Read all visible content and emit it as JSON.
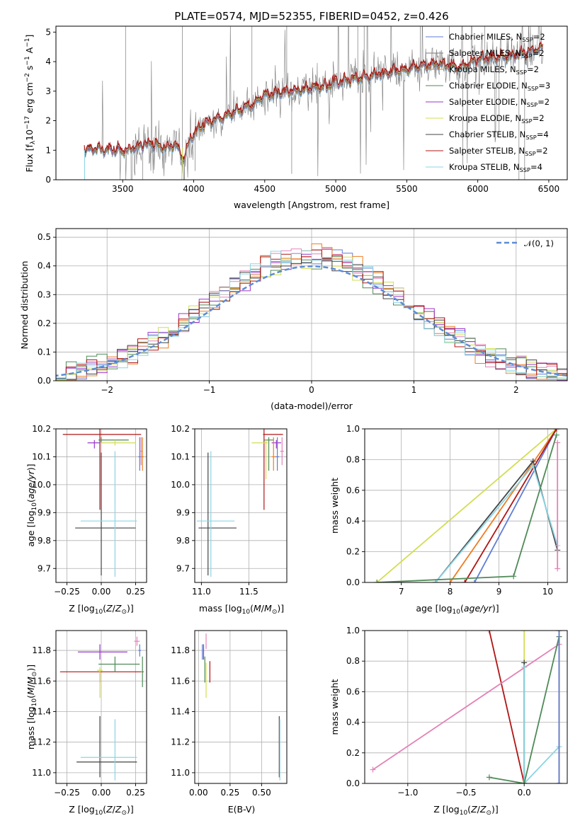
{
  "colors": {
    "chabrier_miles": "#5d7ed6",
    "salpeter_miles": "#7a7a7a",
    "kroupa_miles": "#ee7d22",
    "chabrier_elodie": "#4f8a57",
    "salpeter_elodie": "#9a36c9",
    "kroupa_elodie": "#d3dd52",
    "chabrier_stelib": "#444444",
    "salpeter_stelib": "#b01515",
    "kroupa_stelib": "#8bd5e4",
    "pink": "#e383b8",
    "normal_curve": "#5d8bd6",
    "grid": "#b0b0b0"
  },
  "chart_data": [
    {
      "id": "spectrum",
      "type": "line",
      "title": "PLATE=0574, MJD=52355, FIBERID=0452, z=0.426",
      "xlabel": "wavelength [Angstrom, rest frame]",
      "ylabel": "Flux [f_λ 10^-17 erg cm^-2 s^-1 A^-1]",
      "xlim": [
        3030,
        6630
      ],
      "ylim": [
        0,
        5.2
      ],
      "xticks": [
        3500,
        4000,
        4500,
        5000,
        5500,
        6000,
        6500
      ],
      "yticks": [
        0,
        1,
        2,
        3,
        4,
        5
      ],
      "grid": false,
      "legend_position": "top-right",
      "legend": [
        {
          "label": "Chabrier MILES, N",
          "sub": "SSP",
          "suffix": "=2",
          "color_key": "chabrier_miles"
        },
        {
          "label": "Salpeter MILES, N",
          "sub": "SSP",
          "suffix": "=2",
          "color_key": "salpeter_miles"
        },
        {
          "label": "Kroupa MILES, N",
          "sub": "SSP",
          "suffix": "=2",
          "color_key": "kroupa_miles"
        },
        {
          "label": "Chabrier ELODIE, N",
          "sub": "SSP",
          "suffix": "=3",
          "color_key": "chabrier_elodie"
        },
        {
          "label": "Salpeter ELODIE, N",
          "sub": "SSP",
          "suffix": "=2",
          "color_key": "salpeter_elodie"
        },
        {
          "label": "Kroupa ELODIE, N",
          "sub": "SSP",
          "suffix": "=2",
          "color_key": "kroupa_elodie"
        },
        {
          "label": "Chabrier STELIB, N",
          "sub": "SSP",
          "suffix": "=4",
          "color_key": "chabrier_stelib"
        },
        {
          "label": "Salpeter STELIB, N",
          "sub": "SSP",
          "suffix": "=2",
          "color_key": "salpeter_stelib"
        },
        {
          "label": "Kroupa STELIB, N",
          "sub": "SSP",
          "suffix": "=4",
          "color_key": "kroupa_stelib"
        }
      ],
      "model_anchor_points": [
        [
          3230,
          1.0
        ],
        [
          3300,
          1.05
        ],
        [
          3400,
          1.0
        ],
        [
          3500,
          0.95
        ],
        [
          3600,
          1.1
        ],
        [
          3700,
          1.2
        ],
        [
          3800,
          1.05
        ],
        [
          3870,
          1.15
        ],
        [
          3930,
          0.7
        ],
        [
          3980,
          1.4
        ],
        [
          4050,
          1.8
        ],
        [
          4150,
          2.0
        ],
        [
          4300,
          2.3
        ],
        [
          4400,
          2.5
        ],
        [
          4500,
          2.85
        ],
        [
          4700,
          3.0
        ],
        [
          4860,
          3.1
        ],
        [
          5000,
          3.3
        ],
        [
          5200,
          3.45
        ],
        [
          5300,
          3.55
        ],
        [
          5500,
          3.75
        ],
        [
          5700,
          3.9
        ],
        [
          5890,
          3.8
        ],
        [
          6000,
          4.05
        ],
        [
          6200,
          4.15
        ],
        [
          6400,
          4.35
        ],
        [
          6450,
          4.45
        ]
      ]
    },
    {
      "id": "residuals",
      "type": "histogram",
      "xlabel": "(data-model)/error",
      "ylabel": "Normed distribution",
      "xlim": [
        -2.5,
        2.5
      ],
      "ylim": [
        0,
        0.53
      ],
      "xticks": [
        -2,
        -1,
        0,
        1,
        2
      ],
      "yticks": [
        0.0,
        0.1,
        0.2,
        0.3,
        0.4,
        0.5
      ],
      "grid": true,
      "legend_position": "top-right",
      "legend": [
        {
          "label": "𝒩(0, 1)",
          "color_key": "normal_curve",
          "style": "dashed"
        }
      ],
      "curve": "normal_pdf_mean0_sd1"
    },
    {
      "id": "age_vs_Z",
      "type": "errorbar",
      "xlabel": "Z [log10(Z/Z⊙)]",
      "ylabel": "age [log10(age/yr)]",
      "xlim": [
        -0.33,
        0.33
      ],
      "ylim": [
        9.65,
        10.2
      ],
      "xticks": [
        -0.25,
        0.0,
        0.25
      ],
      "yticks": [
        9.7,
        9.8,
        9.9,
        10.0,
        10.1,
        10.2
      ],
      "grid": true,
      "points": [
        {
          "x": -0.01,
          "y": 10.18,
          "xerr": [
            0.27,
            0.3
          ],
          "yerr": [
            0.27,
            0.02
          ],
          "color_key": "salpeter_stelib"
        },
        {
          "x": 0.0,
          "y": 9.845,
          "xerr": [
            0.19,
            0.25
          ],
          "yerr": [
            0.17,
            0.27
          ],
          "color_key": "chabrier_stelib"
        },
        {
          "x": 0.1,
          "y": 9.87,
          "xerr": [
            0.25,
            0.16
          ],
          "yerr": [
            0.2,
            0.25
          ],
          "color_key": "kroupa_stelib"
        },
        {
          "x": -0.05,
          "y": 10.15,
          "xerr": [
            0.05,
            0.04
          ],
          "yerr": [
            0.02,
            0.01
          ],
          "color_key": "salpeter_elodie"
        },
        {
          "x": 0.0,
          "y": 10.16,
          "xerr": [
            0.02,
            0.2
          ],
          "yerr": [
            0.01,
            0.01
          ],
          "color_key": "chabrier_elodie"
        },
        {
          "x": 0.1,
          "y": 10.15,
          "xerr": [
            0.1,
            0.15
          ],
          "yerr": [
            0.01,
            0.01
          ],
          "color_key": "kroupa_elodie"
        },
        {
          "x": 0.28,
          "y": 10.1,
          "xerr": [
            0.01,
            0.01
          ],
          "yerr": [
            0.05,
            0.07
          ],
          "color_key": "chabrier_miles"
        },
        {
          "x": 0.29,
          "y": 10.12,
          "xerr": [
            0.01,
            0.01
          ],
          "yerr": [
            0.05,
            0.05
          ],
          "color_key": "pink"
        },
        {
          "x": 0.3,
          "y": 10.1,
          "xerr": [
            0.01,
            0.01
          ],
          "yerr": [
            0.05,
            0.07
          ],
          "color_key": "kroupa_miles"
        }
      ]
    },
    {
      "id": "age_vs_mass",
      "type": "errorbar",
      "xlabel": "mass [log10(M/M⊙)]",
      "ylabel": "",
      "xlim": [
        10.93,
        11.9
      ],
      "ylim": [
        9.65,
        10.2
      ],
      "xticks": [
        11.0,
        11.5
      ],
      "yticks": [
        9.7,
        9.8,
        9.9,
        10.0,
        10.1,
        10.2
      ],
      "grid": true,
      "points": [
        {
          "x": 11.07,
          "y": 9.845,
          "xerr": [
            0.1,
            0.3
          ],
          "yerr": [
            0.17,
            0.27
          ],
          "color_key": "chabrier_stelib"
        },
        {
          "x": 11.1,
          "y": 9.87,
          "xerr": [
            0.15,
            0.25
          ],
          "yerr": [
            0.2,
            0.25
          ],
          "color_key": "kroupa_stelib"
        },
        {
          "x": 11.66,
          "y": 10.18,
          "xerr": [
            0.01,
            0.2
          ],
          "yerr": [
            0.27,
            0.02
          ],
          "color_key": "salpeter_stelib"
        },
        {
          "x": 11.79,
          "y": 10.15,
          "xerr": [
            0.05,
            0.05
          ],
          "yerr": [
            0.02,
            0.01
          ],
          "color_key": "salpeter_elodie"
        },
        {
          "x": 11.71,
          "y": 10.16,
          "xerr": [
            0.05,
            0.05
          ],
          "yerr": [
            0.11,
            0.01
          ],
          "color_key": "chabrier_elodie"
        },
        {
          "x": 11.68,
          "y": 10.15,
          "xerr": [
            0.15,
            0.02
          ],
          "yerr": [
            0.13,
            0.01
          ],
          "color_key": "kroupa_elodie"
        },
        {
          "x": 11.8,
          "y": 10.1,
          "xerr": [
            0.02,
            0.02
          ],
          "yerr": [
            0.05,
            0.07
          ],
          "color_key": "chabrier_miles"
        },
        {
          "x": 11.85,
          "y": 10.12,
          "xerr": [
            0.02,
            0.02
          ],
          "yerr": [
            0.05,
            0.05
          ],
          "color_key": "pink"
        },
        {
          "x": 11.76,
          "y": 10.1,
          "xerr": [
            0.02,
            0.02
          ],
          "yerr": [
            0.05,
            0.07
          ],
          "color_key": "kroupa_miles"
        }
      ]
    },
    {
      "id": "massweight_vs_age",
      "type": "line",
      "xlabel": "age [log10(age/yr)]",
      "ylabel": "mass weight",
      "xlim": [
        6.25,
        10.4
      ],
      "ylim": [
        0,
        1
      ],
      "xticks": [
        7,
        8,
        9,
        10
      ],
      "yticks": [
        0.0,
        0.2,
        0.4,
        0.6,
        0.8,
        1.0
      ],
      "grid": true,
      "series": [
        {
          "color_key": "kroupa_elodie",
          "x": [
            6.5,
            10.18
          ],
          "y": [
            0.0,
            1.0
          ]
        },
        {
          "color_key": "chabrier_miles",
          "x": [
            8.5,
            10.18
          ],
          "y": [
            0.0,
            1.0
          ]
        },
        {
          "color_key": "kroupa_miles",
          "x": [
            8.0,
            10.18
          ],
          "y": [
            0.0,
            1.0
          ]
        },
        {
          "color_key": "salpeter_stelib",
          "x": [
            8.3,
            10.18
          ],
          "y": [
            0.0,
            1.0
          ]
        },
        {
          "color_key": "chabrier_stelib",
          "x": [
            7.7,
            9.7,
            10.2
          ],
          "y": [
            0.0,
            0.79,
            0.21
          ]
        },
        {
          "color_key": "kroupa_stelib",
          "x": [
            7.7,
            9.7,
            10.2
          ],
          "y": [
            0.0,
            0.76,
            0.24
          ]
        },
        {
          "color_key": "chabrier_elodie",
          "x": [
            6.5,
            9.3,
            10.18
          ],
          "y": [
            0.0,
            0.04,
            0.96
          ]
        },
        {
          "color_key": "pink",
          "x": [
            10.2,
            10.2
          ],
          "y": [
            0.91,
            0.09
          ]
        }
      ]
    },
    {
      "id": "mass_vs_Z",
      "type": "errorbar",
      "xlabel": "Z [log10(Z/Z⊙)]",
      "ylabel": "mass [log10(M/M⊙)]",
      "xlim": [
        -0.33,
        0.33
      ],
      "ylim": [
        10.93,
        11.93
      ],
      "xticks": [
        -0.25,
        0.0,
        0.25
      ],
      "yticks": [
        11.0,
        11.2,
        11.4,
        11.6,
        11.8
      ],
      "grid": true,
      "points": [
        {
          "x": -0.01,
          "y": 11.66,
          "xerr": [
            0.29,
            0.3
          ],
          "yerr": [
            0.07,
            0.0
          ],
          "color_key": "salpeter_stelib"
        },
        {
          "x": -0.01,
          "y": 11.07,
          "xerr": [
            0.17,
            0.27
          ],
          "yerr": [
            0.1,
            0.3
          ],
          "color_key": "chabrier_stelib"
        },
        {
          "x": 0.1,
          "y": 11.1,
          "xerr": [
            0.25,
            0.16
          ],
          "yerr": [
            0.15,
            0.25
          ],
          "color_key": "kroupa_stelib"
        },
        {
          "x": -0.01,
          "y": 11.79,
          "xerr": [
            0.16,
            0.2
          ],
          "yerr": [
            0.05,
            0.05
          ],
          "color_key": "salpeter_elodie"
        },
        {
          "x": 0.1,
          "y": 11.71,
          "xerr": [
            0.12,
            0.18
          ],
          "yerr": [
            0.05,
            0.05
          ],
          "color_key": "chabrier_elodie"
        },
        {
          "x": -0.01,
          "y": 11.67,
          "xerr": [
            0.02,
            0.02
          ],
          "yerr": [
            0.18,
            0.02
          ],
          "color_key": "kroupa_elodie"
        },
        {
          "x": 0.28,
          "y": 11.8,
          "xerr": [
            0.01,
            0.01
          ],
          "yerr": [
            0.04,
            0.04
          ],
          "color_key": "chabrier_miles"
        },
        {
          "x": 0.26,
          "y": 11.86,
          "xerr": [
            0.02,
            0.02
          ],
          "yerr": [
            0.03,
            0.03
          ],
          "color_key": "pink"
        },
        {
          "x": 0.3,
          "y": 11.66,
          "xerr": [
            0.01,
            0.01
          ],
          "yerr": [
            0.1,
            0.1
          ],
          "color_key": "chabrier_elodie"
        }
      ]
    },
    {
      "id": "mass_vs_ebv",
      "type": "errorbar",
      "xlabel": "E(B-V)",
      "ylabel": "",
      "xlim": [
        -0.03,
        0.7
      ],
      "ylim": [
        10.93,
        11.93
      ],
      "xticks": [
        0.0,
        0.25,
        0.5
      ],
      "yticks": [
        11.0,
        11.2,
        11.4,
        11.6,
        11.8
      ],
      "grid": true,
      "points": [
        {
          "x": 0.04,
          "y": 11.79,
          "xerr": [
            0,
            0
          ],
          "yerr": [
            0.05,
            0.05
          ],
          "color_key": "salpeter_elodie"
        },
        {
          "x": 0.06,
          "y": 11.67,
          "xerr": [
            0,
            0
          ],
          "yerr": [
            0.18,
            0.05
          ],
          "color_key": "kroupa_elodie"
        },
        {
          "x": 0.05,
          "y": 11.71,
          "xerr": [
            0,
            0
          ],
          "yerr": [
            0.12,
            0.05
          ],
          "color_key": "chabrier_elodie"
        },
        {
          "x": 0.09,
          "y": 11.66,
          "xerr": [
            0,
            0
          ],
          "yerr": [
            0.07,
            0.07
          ],
          "color_key": "salpeter_stelib"
        },
        {
          "x": 0.03,
          "y": 11.79,
          "xerr": [
            0,
            0
          ],
          "yerr": [
            0.05,
            0.05
          ],
          "color_key": "chabrier_miles"
        },
        {
          "x": 0.06,
          "y": 11.86,
          "xerr": [
            0,
            0
          ],
          "yerr": [
            0.05,
            0.05
          ],
          "color_key": "pink"
        },
        {
          "x": 0.64,
          "y": 11.07,
          "xerr": [
            0,
            0
          ],
          "yerr": [
            0.1,
            0.3
          ],
          "color_key": "chabrier_stelib"
        },
        {
          "x": 0.645,
          "y": 11.1,
          "xerr": [
            0,
            0
          ],
          "yerr": [
            0.15,
            0.25
          ],
          "color_key": "kroupa_stelib"
        }
      ]
    },
    {
      "id": "massweight_vs_Z",
      "type": "line",
      "xlabel": "Z [log10(Z/Z⊙)]",
      "ylabel": "mass weight",
      "xlim": [
        -1.37,
        0.37
      ],
      "ylim": [
        0,
        1
      ],
      "xticks": [
        -1.0,
        -0.5,
        0.0
      ],
      "yticks": [
        0.0,
        0.2,
        0.4,
        0.6,
        0.8,
        1.0
      ],
      "grid": true,
      "series": [
        {
          "color_key": "salpeter_stelib",
          "x": [
            -0.3,
            0.0
          ],
          "y": [
            1.0,
            0.0
          ]
        },
        {
          "color_key": "pink",
          "x": [
            -1.3,
            0.3
          ],
          "y": [
            0.09,
            0.91
          ]
        },
        {
          "color_key": "kroupa_elodie",
          "x": [
            0.0,
            0.0
          ],
          "y": [
            0.0,
            1.0
          ]
        },
        {
          "color_key": "chabrier_stelib",
          "x": [
            0.0,
            0.0
          ],
          "y": [
            0.79,
            0.0
          ]
        },
        {
          "color_key": "kroupa_stelib",
          "x": [
            0.0,
            0.0,
            0.3
          ],
          "y": [
            0.76,
            0.0,
            0.24
          ]
        },
        {
          "color_key": "chabrier_elodie",
          "x": [
            -0.3,
            0.0,
            0.3
          ],
          "y": [
            0.04,
            0.0,
            0.96
          ]
        },
        {
          "color_key": "kroupa_miles",
          "x": [
            0.3,
            0.3
          ],
          "y": [
            0.0,
            1.0
          ]
        },
        {
          "color_key": "chabrier_miles",
          "x": [
            0.3,
            0.3
          ],
          "y": [
            0.0,
            1.0
          ]
        }
      ]
    }
  ]
}
